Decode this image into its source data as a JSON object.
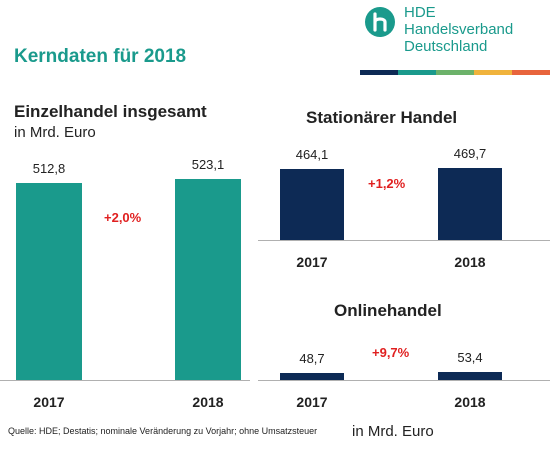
{
  "title": "Kerndaten für 2018",
  "logo": {
    "line1": "HDE",
    "line2": "Handelsverband",
    "line3": "Deutschland",
    "color": "#1a9a8c",
    "stripe_colors": [
      "#0d2a55",
      "#1a9a8c",
      "#6cb26a",
      "#f0b33c",
      "#e8643c"
    ]
  },
  "chart_data": [
    {
      "type": "bar",
      "title": "Einzelhandel insgesamt",
      "subtitle": "in Mrd. Euro",
      "categories": [
        "2017",
        "2018"
      ],
      "values": [
        512.8,
        523.1
      ],
      "value_labels": [
        "512,8",
        "523,1"
      ],
      "change": "+2,0%",
      "color": "#1a9a8c"
    },
    {
      "type": "bar",
      "title": "Stationärer Handel",
      "categories": [
        "2017",
        "2018"
      ],
      "values": [
        464.1,
        469.7
      ],
      "value_labels": [
        "464,1",
        "469,7"
      ],
      "change": "+1,2%",
      "color": "#0d2a55"
    },
    {
      "type": "bar",
      "title": "Onlinehandel",
      "categories": [
        "2017",
        "2018"
      ],
      "values": [
        48.7,
        53.4
      ],
      "value_labels": [
        "48,7",
        "53,4"
      ],
      "change": "+9,7%",
      "color": "#0d2a55"
    }
  ],
  "footer": {
    "source": "Quelle: HDE; Destatis; nominale Veränderung zu Vorjahr; ohne Umsatzsteuer",
    "unit": "in Mrd. Euro"
  }
}
